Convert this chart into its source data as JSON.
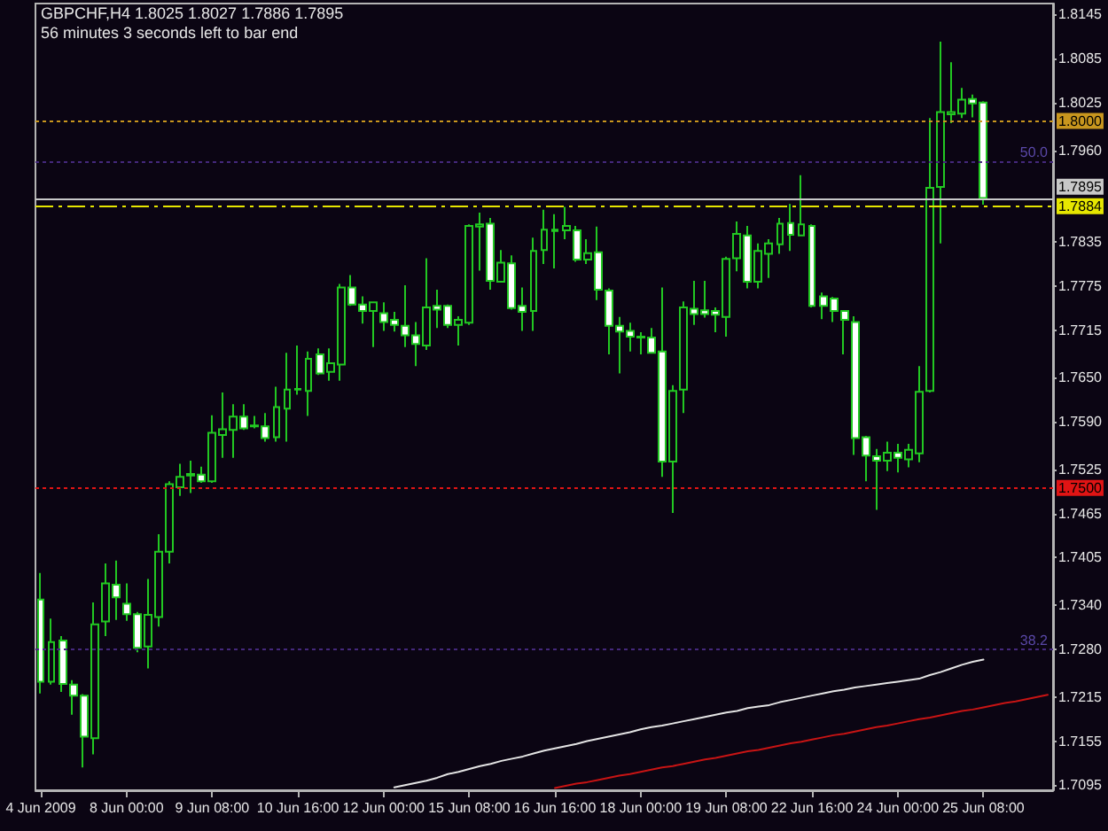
{
  "chart_data": {
    "type": "candlestick",
    "title": "GBPCHF,H4 1.8025 1.8027 1.7886 1.7895",
    "subtitle": "56 minutes 3 seconds left to bar end",
    "categories": [
      "4 Jun 2009",
      null,
      null,
      null,
      null,
      null,
      null,
      null,
      "8 Jun 00:00",
      null,
      null,
      null,
      null,
      null,
      null,
      null,
      "9 Jun 08:00",
      null,
      null,
      null,
      null,
      null,
      null,
      null,
      "10 Jun 16:00",
      null,
      null,
      null,
      null,
      null,
      null,
      null,
      "12 Jun 00:00",
      null,
      null,
      null,
      null,
      null,
      null,
      null,
      "15 Jun 08:00",
      null,
      null,
      null,
      null,
      null,
      null,
      null,
      "16 Jun 16:00",
      null,
      null,
      null,
      null,
      null,
      null,
      null,
      "18 Jun 00:00",
      null,
      null,
      null,
      null,
      null,
      null,
      null,
      "19 Jun 08:00",
      null,
      null,
      null,
      null,
      null,
      null,
      null,
      "22 Jun 16:00",
      null,
      null,
      null,
      null,
      null,
      null,
      null,
      "24 Jun 00:00",
      null,
      null,
      null,
      null,
      null,
      null,
      null,
      "25 Jun 08:00",
      null,
      null,
      null,
      null,
      null,
      null
    ],
    "series": [
      {
        "color": "#22c822",
        "ohlc": [
          [
            1.7348,
            1.7384,
            1.722,
            1.7236
          ],
          [
            1.7236,
            1.7322,
            1.7232,
            1.729
          ],
          [
            1.7292,
            1.7298,
            1.7222,
            1.7233
          ],
          [
            1.7232,
            1.7238,
            1.7191,
            1.7217
          ],
          [
            1.7217,
            1.7219,
            1.7119,
            1.7161
          ],
          [
            1.7159,
            1.7344,
            1.7137,
            1.7314
          ],
          [
            1.7318,
            1.7397,
            1.7298,
            1.737
          ],
          [
            1.7368,
            1.7401,
            1.732,
            1.7351
          ],
          [
            1.7342,
            1.737,
            1.7319,
            1.7328
          ],
          [
            1.7328,
            1.7331,
            1.7276,
            1.7282
          ],
          [
            1.7284,
            1.7376,
            1.7254,
            1.7327
          ],
          [
            1.7324,
            1.7437,
            1.7311,
            1.7413
          ],
          [
            1.7413,
            1.7509,
            1.7397,
            1.7505
          ],
          [
            1.7501,
            1.7533,
            1.7489,
            1.7515
          ],
          [
            1.7517,
            1.7537,
            1.7493,
            1.7519
          ],
          [
            1.7518,
            1.7529,
            1.7507,
            1.7509
          ],
          [
            1.7509,
            1.7599,
            1.7507,
            1.7575
          ],
          [
            1.7572,
            1.763,
            1.7541,
            1.758
          ],
          [
            1.7579,
            1.7614,
            1.7541,
            1.7597
          ],
          [
            1.7597,
            1.7614,
            1.7579,
            1.7581
          ],
          [
            1.7585,
            1.7598,
            1.7581,
            1.7584
          ],
          [
            1.7584,
            1.7602,
            1.7563,
            1.7568
          ],
          [
            1.7569,
            1.7638,
            1.7563,
            1.761
          ],
          [
            1.7608,
            1.7684,
            1.7563,
            1.7634
          ],
          [
            1.7634,
            1.7694,
            1.7627,
            1.7635
          ],
          [
            1.7632,
            1.7686,
            1.7598,
            1.7676
          ],
          [
            1.7682,
            1.769,
            1.7654,
            1.7656
          ],
          [
            1.7658,
            1.769,
            1.7646,
            1.767
          ],
          [
            1.7668,
            1.7778,
            1.7646,
            1.7773
          ],
          [
            1.7773,
            1.779,
            1.7748,
            1.775
          ],
          [
            1.775,
            1.7761,
            1.7724,
            1.7741
          ],
          [
            1.7741,
            1.7754,
            1.7692,
            1.7753
          ],
          [
            1.7738,
            1.7753,
            1.7714,
            1.7726
          ],
          [
            1.7729,
            1.774,
            1.7713,
            1.7722
          ],
          [
            1.7721,
            1.7776,
            1.7692,
            1.7708
          ],
          [
            1.7708,
            1.7726,
            1.7666,
            1.7696
          ],
          [
            1.7694,
            1.7813,
            1.7688,
            1.7746
          ],
          [
            1.7748,
            1.777,
            1.7718,
            1.7743
          ],
          [
            1.7748,
            1.775,
            1.7718,
            1.7722
          ],
          [
            1.7722,
            1.7734,
            1.7694,
            1.7729
          ],
          [
            1.7725,
            1.7859,
            1.7722,
            1.7857
          ],
          [
            1.7856,
            1.7875,
            1.7796,
            1.7859
          ],
          [
            1.786,
            1.7868,
            1.777,
            1.7782
          ],
          [
            1.7781,
            1.7824,
            1.778,
            1.7807
          ],
          [
            1.7806,
            1.7817,
            1.7743,
            1.7745
          ],
          [
            1.7748,
            1.7773,
            1.7714,
            1.774
          ],
          [
            1.7741,
            1.7841,
            1.7714,
            1.7823
          ],
          [
            1.7824,
            1.7879,
            1.7805,
            1.7852
          ],
          [
            1.7852,
            1.7873,
            1.7799,
            1.785
          ],
          [
            1.7851,
            1.7883,
            1.7839,
            1.7857
          ],
          [
            1.7851,
            1.7857,
            1.7808,
            1.7811
          ],
          [
            1.7811,
            1.7839,
            1.7805,
            1.782
          ],
          [
            1.7821,
            1.7856,
            1.7756,
            1.777
          ],
          [
            1.7769,
            1.7772,
            1.7682,
            1.7721
          ],
          [
            1.7721,
            1.7733,
            1.7656,
            1.7713
          ],
          [
            1.7714,
            1.7725,
            1.7686,
            1.7706
          ],
          [
            1.7706,
            1.7712,
            1.7682,
            1.7705
          ],
          [
            1.7705,
            1.7718,
            1.7683,
            1.7684
          ],
          [
            1.7686,
            1.7773,
            1.7515,
            1.7536
          ],
          [
            1.7536,
            1.764,
            1.7466,
            1.7632
          ],
          [
            1.7634,
            1.7754,
            1.7602,
            1.7746
          ],
          [
            1.7744,
            1.7782,
            1.7722,
            1.7737
          ],
          [
            1.7742,
            1.7782,
            1.7732,
            1.7737
          ],
          [
            1.7741,
            1.7746,
            1.7712,
            1.7736
          ],
          [
            1.7733,
            1.7815,
            1.7706,
            1.7812
          ],
          [
            1.7813,
            1.7863,
            1.7795,
            1.7846
          ],
          [
            1.7844,
            1.7857,
            1.7772,
            1.7781
          ],
          [
            1.7781,
            1.7833,
            1.7772,
            1.7823
          ],
          [
            1.7819,
            1.7839,
            1.7786,
            1.7833
          ],
          [
            1.7832,
            1.7868,
            1.7819,
            1.786
          ],
          [
            1.7861,
            1.7887,
            1.7823,
            1.7845
          ],
          [
            1.7844,
            1.7926,
            1.7843,
            1.7859
          ],
          [
            1.7857,
            1.7859,
            1.7746,
            1.7748
          ],
          [
            1.7761,
            1.7766,
            1.773,
            1.7748
          ],
          [
            1.7758,
            1.776,
            1.7726,
            1.7741
          ],
          [
            1.7741,
            1.7742,
            1.7682,
            1.7729
          ],
          [
            1.7726,
            1.7734,
            1.7545,
            1.7568
          ],
          [
            1.7569,
            1.7571,
            1.7509,
            1.7544
          ],
          [
            1.7543,
            1.7553,
            1.747,
            1.7537
          ],
          [
            1.7537,
            1.7563,
            1.7523,
            1.7548
          ],
          [
            1.7548,
            1.756,
            1.7521,
            1.7541
          ],
          [
            1.7539,
            1.756,
            1.7528,
            1.7552
          ],
          [
            1.7547,
            1.7666,
            1.7535,
            1.7631
          ],
          [
            1.7632,
            1.8004,
            1.763,
            1.7909
          ],
          [
            1.791,
            1.8108,
            1.7833,
            1.8012
          ],
          [
            1.8009,
            1.808,
            1.7997,
            1.8012
          ],
          [
            1.801,
            1.8045,
            1.8004,
            1.8029
          ],
          [
            1.803,
            1.8036,
            1.8005,
            1.8024
          ],
          [
            1.8025,
            1.8027,
            1.7886,
            1.7895
          ],
          null,
          null,
          null,
          null,
          null,
          null
        ]
      },
      {
        "type": "line",
        "color": "#e4e4e4",
        "values": [
          null,
          null,
          null,
          null,
          null,
          null,
          null,
          null,
          null,
          null,
          null,
          null,
          null,
          null,
          null,
          null,
          null,
          null,
          null,
          null,
          null,
          null,
          null,
          null,
          null,
          null,
          null,
          null,
          null,
          null,
          null,
          null,
          null,
          1.7092,
          1.7095,
          1.7098,
          1.7101,
          1.7105,
          1.711,
          1.7113,
          1.7117,
          1.7121,
          1.7124,
          1.7128,
          1.7131,
          1.7134,
          1.7138,
          1.7142,
          1.7145,
          1.7148,
          1.7151,
          1.7155,
          1.7158,
          1.7161,
          1.7164,
          1.7167,
          1.7171,
          1.7174,
          1.7176,
          1.7179,
          1.7182,
          1.7185,
          1.7188,
          1.7191,
          1.7194,
          1.7196,
          1.72,
          1.7202,
          1.7204,
          1.7208,
          1.7211,
          1.7214,
          1.7217,
          1.722,
          1.7223,
          1.7225,
          1.7228,
          1.723,
          1.7232,
          1.7234,
          1.7236,
          1.7238,
          1.724,
          1.7245,
          1.7249,
          1.7254,
          1.7259,
          1.7263,
          1.7266,
          null,
          null,
          null,
          null,
          null,
          null
        ]
      },
      {
        "type": "line",
        "color": "#c81414",
        "values": [
          null,
          null,
          null,
          null,
          null,
          null,
          null,
          null,
          null,
          null,
          null,
          null,
          null,
          null,
          null,
          null,
          null,
          null,
          null,
          null,
          null,
          null,
          null,
          null,
          null,
          null,
          null,
          null,
          null,
          null,
          null,
          null,
          null,
          null,
          null,
          null,
          null,
          null,
          null,
          null,
          null,
          null,
          null,
          null,
          null,
          null,
          null,
          null,
          1.7091,
          1.7094,
          1.7097,
          1.7099,
          1.7102,
          1.7105,
          1.7108,
          1.711,
          1.7113,
          1.7116,
          1.7119,
          1.7121,
          1.7124,
          1.7127,
          1.713,
          1.7132,
          1.7135,
          1.7138,
          1.7141,
          1.7143,
          1.7146,
          1.7149,
          1.7152,
          1.7154,
          1.7157,
          1.716,
          1.7163,
          1.7165,
          1.7168,
          1.7171,
          1.7174,
          1.7176,
          1.7179,
          1.7182,
          1.7185,
          1.7187,
          1.719,
          1.7193,
          1.7196,
          1.7198,
          1.7201,
          1.7204,
          1.7207,
          1.7209,
          1.7212,
          1.7215,
          1.7218
        ]
      }
    ],
    "ylim": [
      1.7088,
      1.816
    ],
    "yticks": [
      1.7095,
      1.7155,
      1.7215,
      {
        "value": 1.728,
        "label": "1.7280"
      },
      {
        "value": 1.734,
        "label": "1.7340"
      },
      1.7405,
      1.7465,
      1.7525,
      {
        "value": 1.759,
        "label": "1.7590"
      },
      {
        "value": 1.765,
        "label": "1.7650"
      },
      1.7715,
      1.7775,
      1.7835,
      {
        "value": 1.796,
        "label": "1.7960"
      },
      1.8025,
      1.8085,
      1.8145
    ],
    "ref_lines": [
      {
        "axis": "y",
        "value": 1.8,
        "label": "1.8000",
        "color": "#c8961e",
        "line_style": "dotted"
      },
      {
        "axis": "y",
        "value": 1.7895,
        "label": "1.7895",
        "color": "#c8c8c8",
        "line_style": "solid"
      },
      {
        "axis": "y",
        "value": 1.7884,
        "label": "1.7884",
        "color": "#e6e600",
        "line_style": "dashed"
      },
      {
        "axis": "y",
        "value": 1.75,
        "label": "1.7500",
        "color": "#e01414",
        "line_style": "dotted"
      },
      {
        "axis": "y",
        "value": 1.7945,
        "color": "#44287c",
        "line_style": "dotted"
      },
      {
        "axis": "y",
        "value": 1.728,
        "color": "#44287c",
        "line_style": "dotted"
      }
    ],
    "annotations": [
      {
        "text": "50.0",
        "y": 1.7945
      },
      {
        "text": "38.2",
        "y": 1.728
      }
    ]
  }
}
